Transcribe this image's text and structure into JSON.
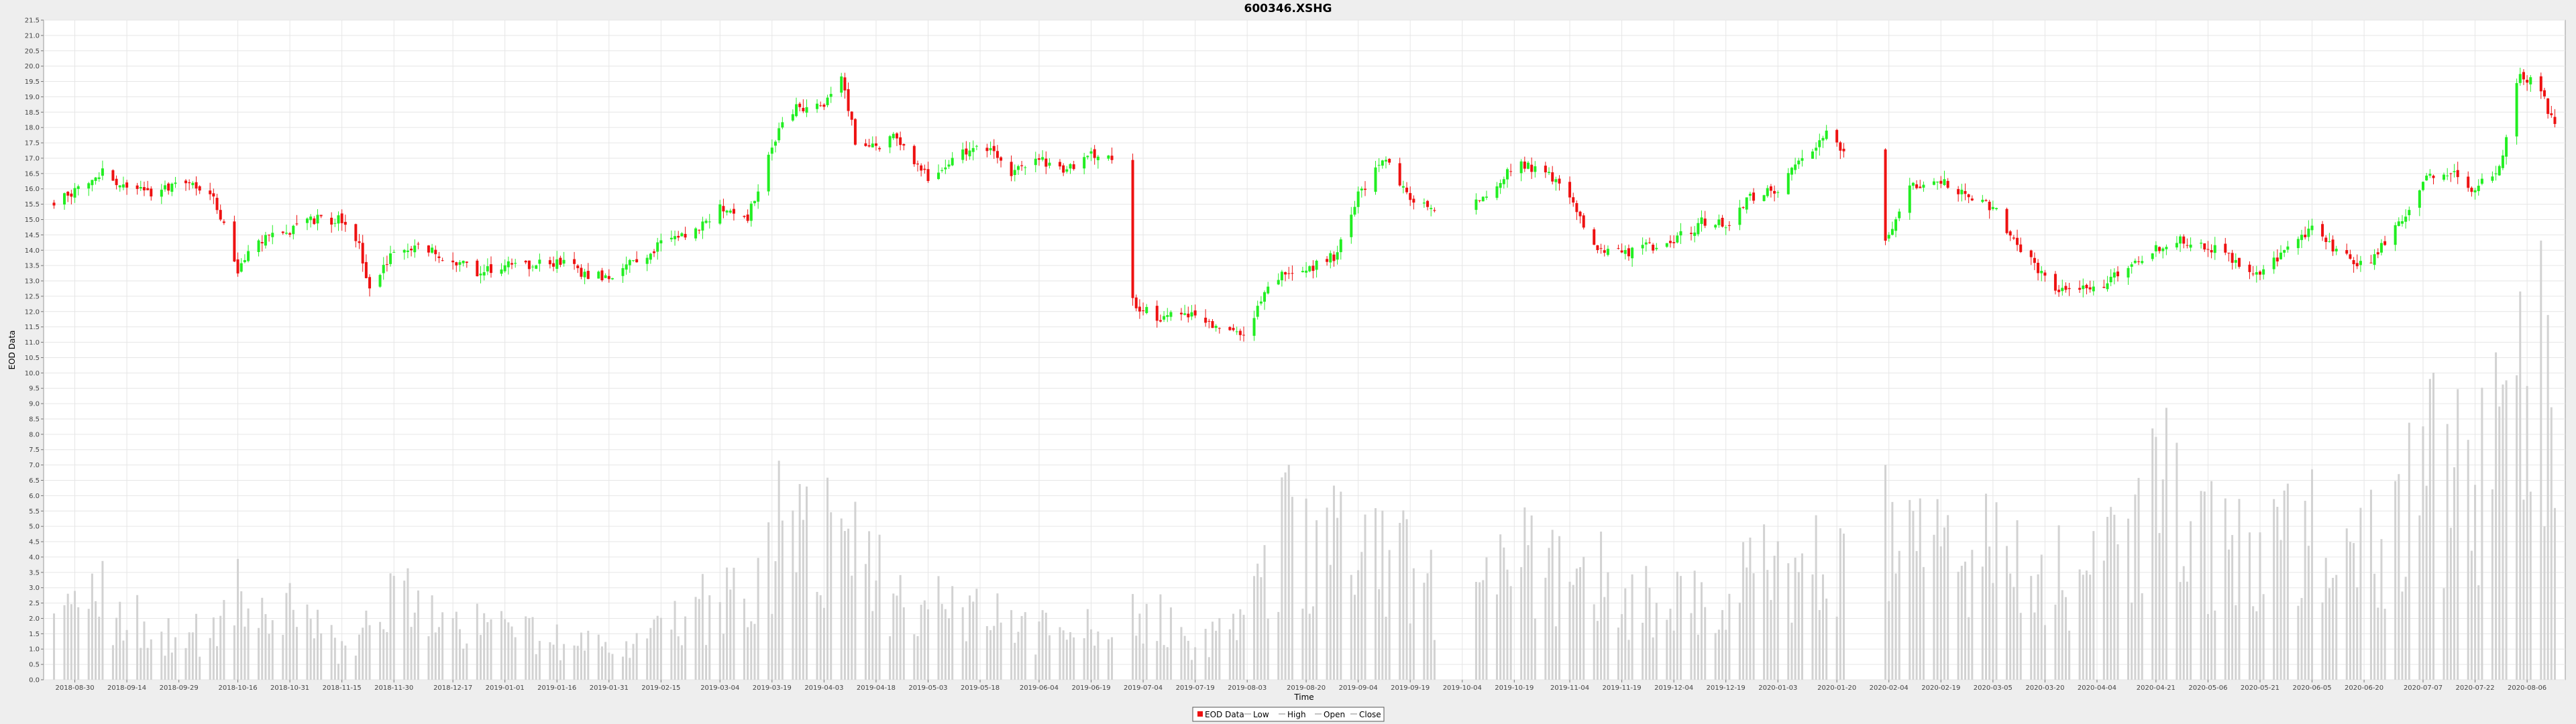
{
  "chart_data": {
    "type": "candlestick",
    "title": "600346.XSHG",
    "xlabel": "Time",
    "ylabel": "EOD Data",
    "ylim": [
      0,
      21.5
    ],
    "y_ticks": [
      "0.0",
      "0.5",
      "1.0",
      "1.5",
      "2.0",
      "2.5",
      "3.0",
      "3.5",
      "4.0",
      "4.5",
      "5.0",
      "5.5",
      "6.0",
      "6.5",
      "7.0",
      "7.5",
      "8.0",
      "8.5",
      "9.0",
      "9.5",
      "10.0",
      "10.5",
      "11.0",
      "11.5",
      "12.0",
      "12.5",
      "13.0",
      "13.5",
      "14.0",
      "14.5",
      "15.0",
      "15.5",
      "16.0",
      "16.5",
      "17.0",
      "17.5",
      "18.0",
      "18.5",
      "19.0",
      "19.5",
      "20.0",
      "20.5",
      "21.0",
      "21.5"
    ],
    "x_ticks": [
      "2018-08-30",
      "2018-09-14",
      "2018-09-29",
      "2018-10-16",
      "2018-10-31",
      "2018-11-15",
      "2018-11-30",
      "2018-12-17",
      "2019-01-01",
      "2019-01-16",
      "2019-01-31",
      "2019-02-15",
      "2019-03-04",
      "2019-03-19",
      "2019-04-03",
      "2019-04-18",
      "2019-05-03",
      "2019-05-18",
      "2019-06-04",
      "2019-06-19",
      "2019-07-04",
      "2019-07-19",
      "2019-08-03",
      "2019-08-20",
      "2019-09-04",
      "2019-09-19",
      "2019-10-04",
      "2019-10-19",
      "2019-11-04",
      "2019-11-19",
      "2019-12-04",
      "2019-12-19",
      "2020-01-03",
      "2020-01-20",
      "2020-02-04",
      "2020-02-19",
      "2020-03-05",
      "2020-03-20",
      "2020-04-04",
      "2020-04-21",
      "2020-05-06",
      "2020-05-21",
      "2020-06-05",
      "2020-06-20",
      "2020-07-07",
      "2020-07-22",
      "2020-08-06"
    ],
    "grid": true,
    "legend_position": "bottom",
    "legend": [
      "EOD Data",
      "Low",
      "High",
      "Open",
      "Close"
    ],
    "colors": {
      "up": "#22ee22",
      "down": "#ee1111",
      "volume": "#d2d2d2",
      "plot_bg": "#ffffff",
      "page_bg": "#eeeeee",
      "grid": "#e6e6e6"
    },
    "close_anchors": [
      [
        "2018-08-24",
        15.5
      ],
      [
        "2018-08-30",
        16.0
      ],
      [
        "2018-09-07",
        16.6
      ],
      [
        "2018-09-14",
        16.0
      ],
      [
        "2018-09-21",
        15.8
      ],
      [
        "2018-09-29",
        16.3
      ],
      [
        "2018-10-08",
        15.9
      ],
      [
        "2018-10-12",
        14.8
      ],
      [
        "2018-10-16",
        13.3
      ],
      [
        "2018-10-22",
        14.3
      ],
      [
        "2018-10-31",
        14.6
      ],
      [
        "2018-11-07",
        15.0
      ],
      [
        "2018-11-15",
        15.0
      ],
      [
        "2018-11-20",
        14.1
      ],
      [
        "2018-11-23",
        12.7
      ],
      [
        "2018-11-30",
        13.9
      ],
      [
        "2018-12-07",
        14.1
      ],
      [
        "2018-12-17",
        13.7
      ],
      [
        "2018-12-24",
        13.3
      ],
      [
        "2019-01-01",
        13.5
      ],
      [
        "2019-01-16",
        13.6
      ],
      [
        "2019-01-25",
        13.2
      ],
      [
        "2019-01-31",
        13.1
      ],
      [
        "2019-02-15",
        14.2
      ],
      [
        "2019-02-25",
        14.6
      ],
      [
        "2019-03-04",
        15.4
      ],
      [
        "2019-03-12",
        15.0
      ],
      [
        "2019-03-19",
        17.5
      ],
      [
        "2019-03-25",
        18.6
      ],
      [
        "2019-04-03",
        18.8
      ],
      [
        "2019-04-08",
        19.6
      ],
      [
        "2019-04-12",
        17.6
      ],
      [
        "2019-04-18",
        17.4
      ],
      [
        "2019-04-24",
        17.7
      ],
      [
        "2019-05-03",
        16.4
      ],
      [
        "2019-05-10",
        17.0
      ],
      [
        "2019-05-18",
        17.5
      ],
      [
        "2019-05-27",
        16.5
      ],
      [
        "2019-06-04",
        16.9
      ],
      [
        "2019-06-12",
        16.6
      ],
      [
        "2019-06-19",
        17.1
      ],
      [
        "2019-06-25",
        16.9
      ],
      [
        "2019-07-01",
        12.3
      ],
      [
        "2019-07-08",
        11.8
      ],
      [
        "2019-07-19",
        11.9
      ],
      [
        "2019-07-29",
        11.3
      ],
      [
        "2019-08-03",
        11.4
      ],
      [
        "2019-08-07",
        12.4
      ],
      [
        "2019-08-13",
        13.2
      ],
      [
        "2019-08-20",
        13.3
      ],
      [
        "2019-08-28",
        13.8
      ],
      [
        "2019-09-04",
        15.8
      ],
      [
        "2019-09-12",
        17.0
      ],
      [
        "2019-09-19",
        15.5
      ],
      [
        "2019-09-26",
        15.3
      ],
      [
        "2019-10-04",
        15.0
      ],
      [
        "2019-10-14",
        16.2
      ],
      [
        "2019-10-19",
        16.8
      ],
      [
        "2019-10-28",
        16.6
      ],
      [
        "2019-11-04",
        15.7
      ],
      [
        "2019-11-10",
        14.2
      ],
      [
        "2019-11-19",
        13.9
      ],
      [
        "2019-11-26",
        14.1
      ],
      [
        "2019-12-04",
        14.3
      ],
      [
        "2019-12-12",
        14.9
      ],
      [
        "2019-12-19",
        14.8
      ],
      [
        "2019-12-26",
        15.7
      ],
      [
        "2020-01-03",
        16.0
      ],
      [
        "2020-01-10",
        17.0
      ],
      [
        "2020-01-17",
        17.8
      ],
      [
        "2020-01-22",
        17.2
      ],
      [
        "2020-02-03",
        14.2
      ],
      [
        "2020-02-10",
        16.1
      ],
      [
        "2020-02-19",
        16.3
      ],
      [
        "2020-02-26",
        15.8
      ],
      [
        "2020-03-05",
        15.4
      ],
      [
        "2020-03-12",
        14.2
      ],
      [
        "2020-03-20",
        13.1
      ],
      [
        "2020-03-26",
        12.6
      ],
      [
        "2020-04-04",
        12.8
      ],
      [
        "2020-04-13",
        13.4
      ],
      [
        "2020-04-21",
        14.1
      ],
      [
        "2020-04-28",
        14.3
      ],
      [
        "2020-05-06",
        14.1
      ],
      [
        "2020-05-14",
        13.7
      ],
      [
        "2020-05-21",
        13.2
      ],
      [
        "2020-05-28",
        13.9
      ],
      [
        "2020-06-05",
        14.7
      ],
      [
        "2020-06-12",
        13.9
      ],
      [
        "2020-06-20",
        13.5
      ],
      [
        "2020-06-27",
        14.3
      ],
      [
        "2020-07-07",
        16.2
      ],
      [
        "2020-07-14",
        16.6
      ],
      [
        "2020-07-22",
        16.0
      ],
      [
        "2020-07-29",
        16.7
      ],
      [
        "2020-08-04",
        19.8
      ],
      [
        "2020-08-10",
        19.2
      ],
      [
        "2020-08-14",
        18.0
      ]
    ],
    "volume_anchors": [
      [
        "2018-08-24",
        1.8
      ],
      [
        "2018-09-07",
        2.6
      ],
      [
        "2018-09-21",
        1.4
      ],
      [
        "2018-10-08",
        1.5
      ],
      [
        "2018-10-16",
        2.8
      ],
      [
        "2018-10-31",
        2.0
      ],
      [
        "2018-11-15",
        1.0
      ],
      [
        "2018-11-30",
        2.6
      ],
      [
        "2018-12-17",
        2.0
      ],
      [
        "2019-01-01",
        1.6
      ],
      [
        "2019-01-16",
        1.4
      ],
      [
        "2019-01-31",
        1.0
      ],
      [
        "2019-02-15",
        2.0
      ],
      [
        "2019-03-04",
        2.4
      ],
      [
        "2019-03-19",
        4.6
      ],
      [
        "2019-04-03",
        4.8
      ],
      [
        "2019-04-18",
        3.2
      ],
      [
        "2019-05-03",
        2.2
      ],
      [
        "2019-05-18",
        2.0
      ],
      [
        "2019-06-04",
        1.8
      ],
      [
        "2019-06-19",
        2.0
      ],
      [
        "2019-07-04",
        2.4
      ],
      [
        "2019-07-19",
        1.0
      ],
      [
        "2019-08-03",
        1.6
      ],
      [
        "2019-08-13",
        4.8
      ],
      [
        "2019-08-20",
        4.4
      ],
      [
        "2019-09-04",
        3.8
      ],
      [
        "2019-09-19",
        3.4
      ],
      [
        "2019-10-04",
        1.8
      ],
      [
        "2019-10-19",
        4.2
      ],
      [
        "2019-11-04",
        3.4
      ],
      [
        "2019-11-19",
        2.8
      ],
      [
        "2019-12-04",
        2.4
      ],
      [
        "2019-12-19",
        2.6
      ],
      [
        "2020-01-03",
        3.4
      ],
      [
        "2020-01-20",
        3.6
      ],
      [
        "2020-02-04",
        5.4
      ],
      [
        "2020-02-19",
        3.6
      ],
      [
        "2020-03-05",
        4.4
      ],
      [
        "2020-03-20",
        3.6
      ],
      [
        "2020-04-04",
        3.0
      ],
      [
        "2020-04-21",
        6.4
      ],
      [
        "2020-05-06",
        4.4
      ],
      [
        "2020-05-21",
        3.8
      ],
      [
        "2020-06-05",
        4.8
      ],
      [
        "2020-06-20",
        3.6
      ],
      [
        "2020-07-07",
        7.4
      ],
      [
        "2020-07-22",
        5.4
      ],
      [
        "2020-08-06",
        9.6
      ]
    ],
    "no_data_segments": [
      [
        "2019-06-26",
        "2019-06-30"
      ],
      [
        "2019-09-27",
        "2019-10-07"
      ],
      [
        "2020-01-23",
        "2020-02-02"
      ]
    ]
  },
  "legend_labels": {
    "eod": "EOD Data",
    "low": "Low",
    "high": "High",
    "open": "Open",
    "close": "Close"
  }
}
